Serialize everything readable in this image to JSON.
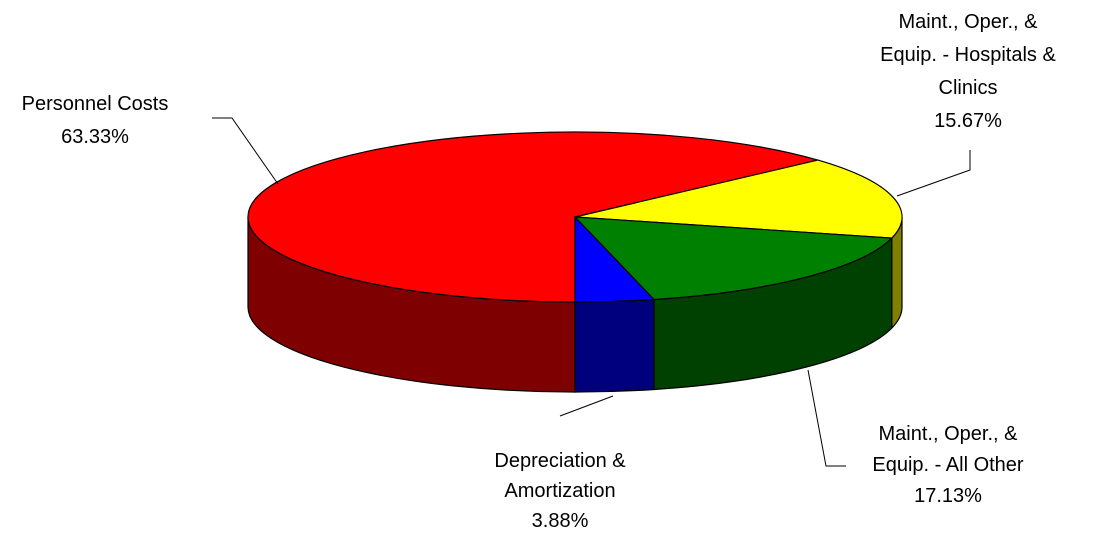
{
  "chart_data": {
    "type": "pie",
    "categories": [
      "Personnel Costs",
      "Maint., Oper., & Equip. - Hospitals & Clinics",
      "Maint., Oper., & Equip. - All Other",
      "Depreciation & Amortization"
    ],
    "values": [
      63.33,
      15.67,
      17.13,
      3.88
    ],
    "value_labels": [
      "63.33%",
      "15.67%",
      "17.13%",
      "3.88%"
    ],
    "colors": [
      "#ff0000",
      "#ffff00",
      "#008000",
      "#0000ff"
    ]
  }
}
